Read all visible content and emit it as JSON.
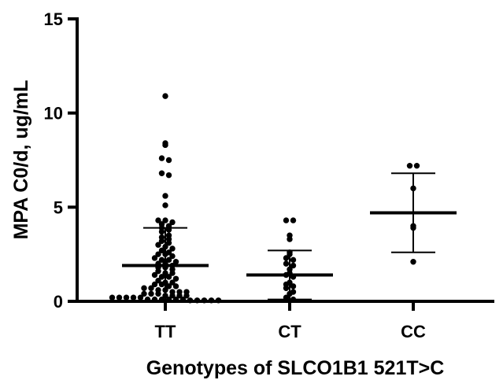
{
  "chart_data": {
    "type": "scatter",
    "xlabel": "Genotypes of SLCO1B1 521T>C",
    "ylabel": "MPA C0/d, ug/mL",
    "ylim": [
      0,
      15
    ],
    "yticks": [
      0,
      5,
      10,
      15
    ],
    "categories": [
      "TT",
      "CT",
      "CC"
    ],
    "grid": false,
    "series": [
      {
        "category": "TT",
        "mean": 1.9,
        "sd_low": 0.0,
        "sd_high": 3.9,
        "points": [
          10.9,
          8.4,
          8.3,
          7.6,
          7.5,
          6.8,
          6.7,
          5.6,
          5.1,
          4.3,
          4.3,
          4.2,
          4.1,
          4.0,
          3.9,
          3.8,
          3.7,
          3.5,
          3.4,
          3.3,
          3.2,
          3.1,
          3.0,
          2.9,
          2.8,
          2.7,
          2.6,
          2.5,
          2.5,
          2.4,
          2.3,
          2.2,
          2.2,
          2.1,
          2.0,
          2.0,
          1.9,
          1.8,
          1.8,
          1.7,
          1.6,
          1.5,
          1.5,
          1.4,
          1.3,
          1.3,
          1.2,
          1.1,
          1.0,
          1.0,
          0.9,
          0.9,
          0.8,
          0.8,
          0.7,
          0.7,
          0.6,
          0.6,
          0.5,
          0.5,
          0.5,
          0.4,
          0.4,
          0.4,
          0.3,
          0.3,
          0.3,
          0.3,
          0.2,
          0.2,
          0.2,
          0.2,
          0.2,
          0.1,
          0.1,
          0.1,
          0.1,
          0.1,
          0.1,
          0.05,
          0.05,
          0.05,
          0.05,
          0.05
        ]
      },
      {
        "category": "CT",
        "mean": 1.4,
        "sd_low": 0.1,
        "sd_high": 2.7,
        "points": [
          4.3,
          4.3,
          3.5,
          3.3,
          2.6,
          2.5,
          2.3,
          2.2,
          2.0,
          1.9,
          1.7,
          1.5,
          1.4,
          1.3,
          1.0,
          0.9,
          0.8,
          0.7,
          0.5,
          0.4,
          0.2,
          0.1
        ]
      },
      {
        "category": "CC",
        "mean": 4.7,
        "sd_low": 2.6,
        "sd_high": 6.8,
        "points": [
          7.2,
          7.2,
          6.0,
          4.0,
          3.9,
          2.1
        ]
      }
    ]
  }
}
